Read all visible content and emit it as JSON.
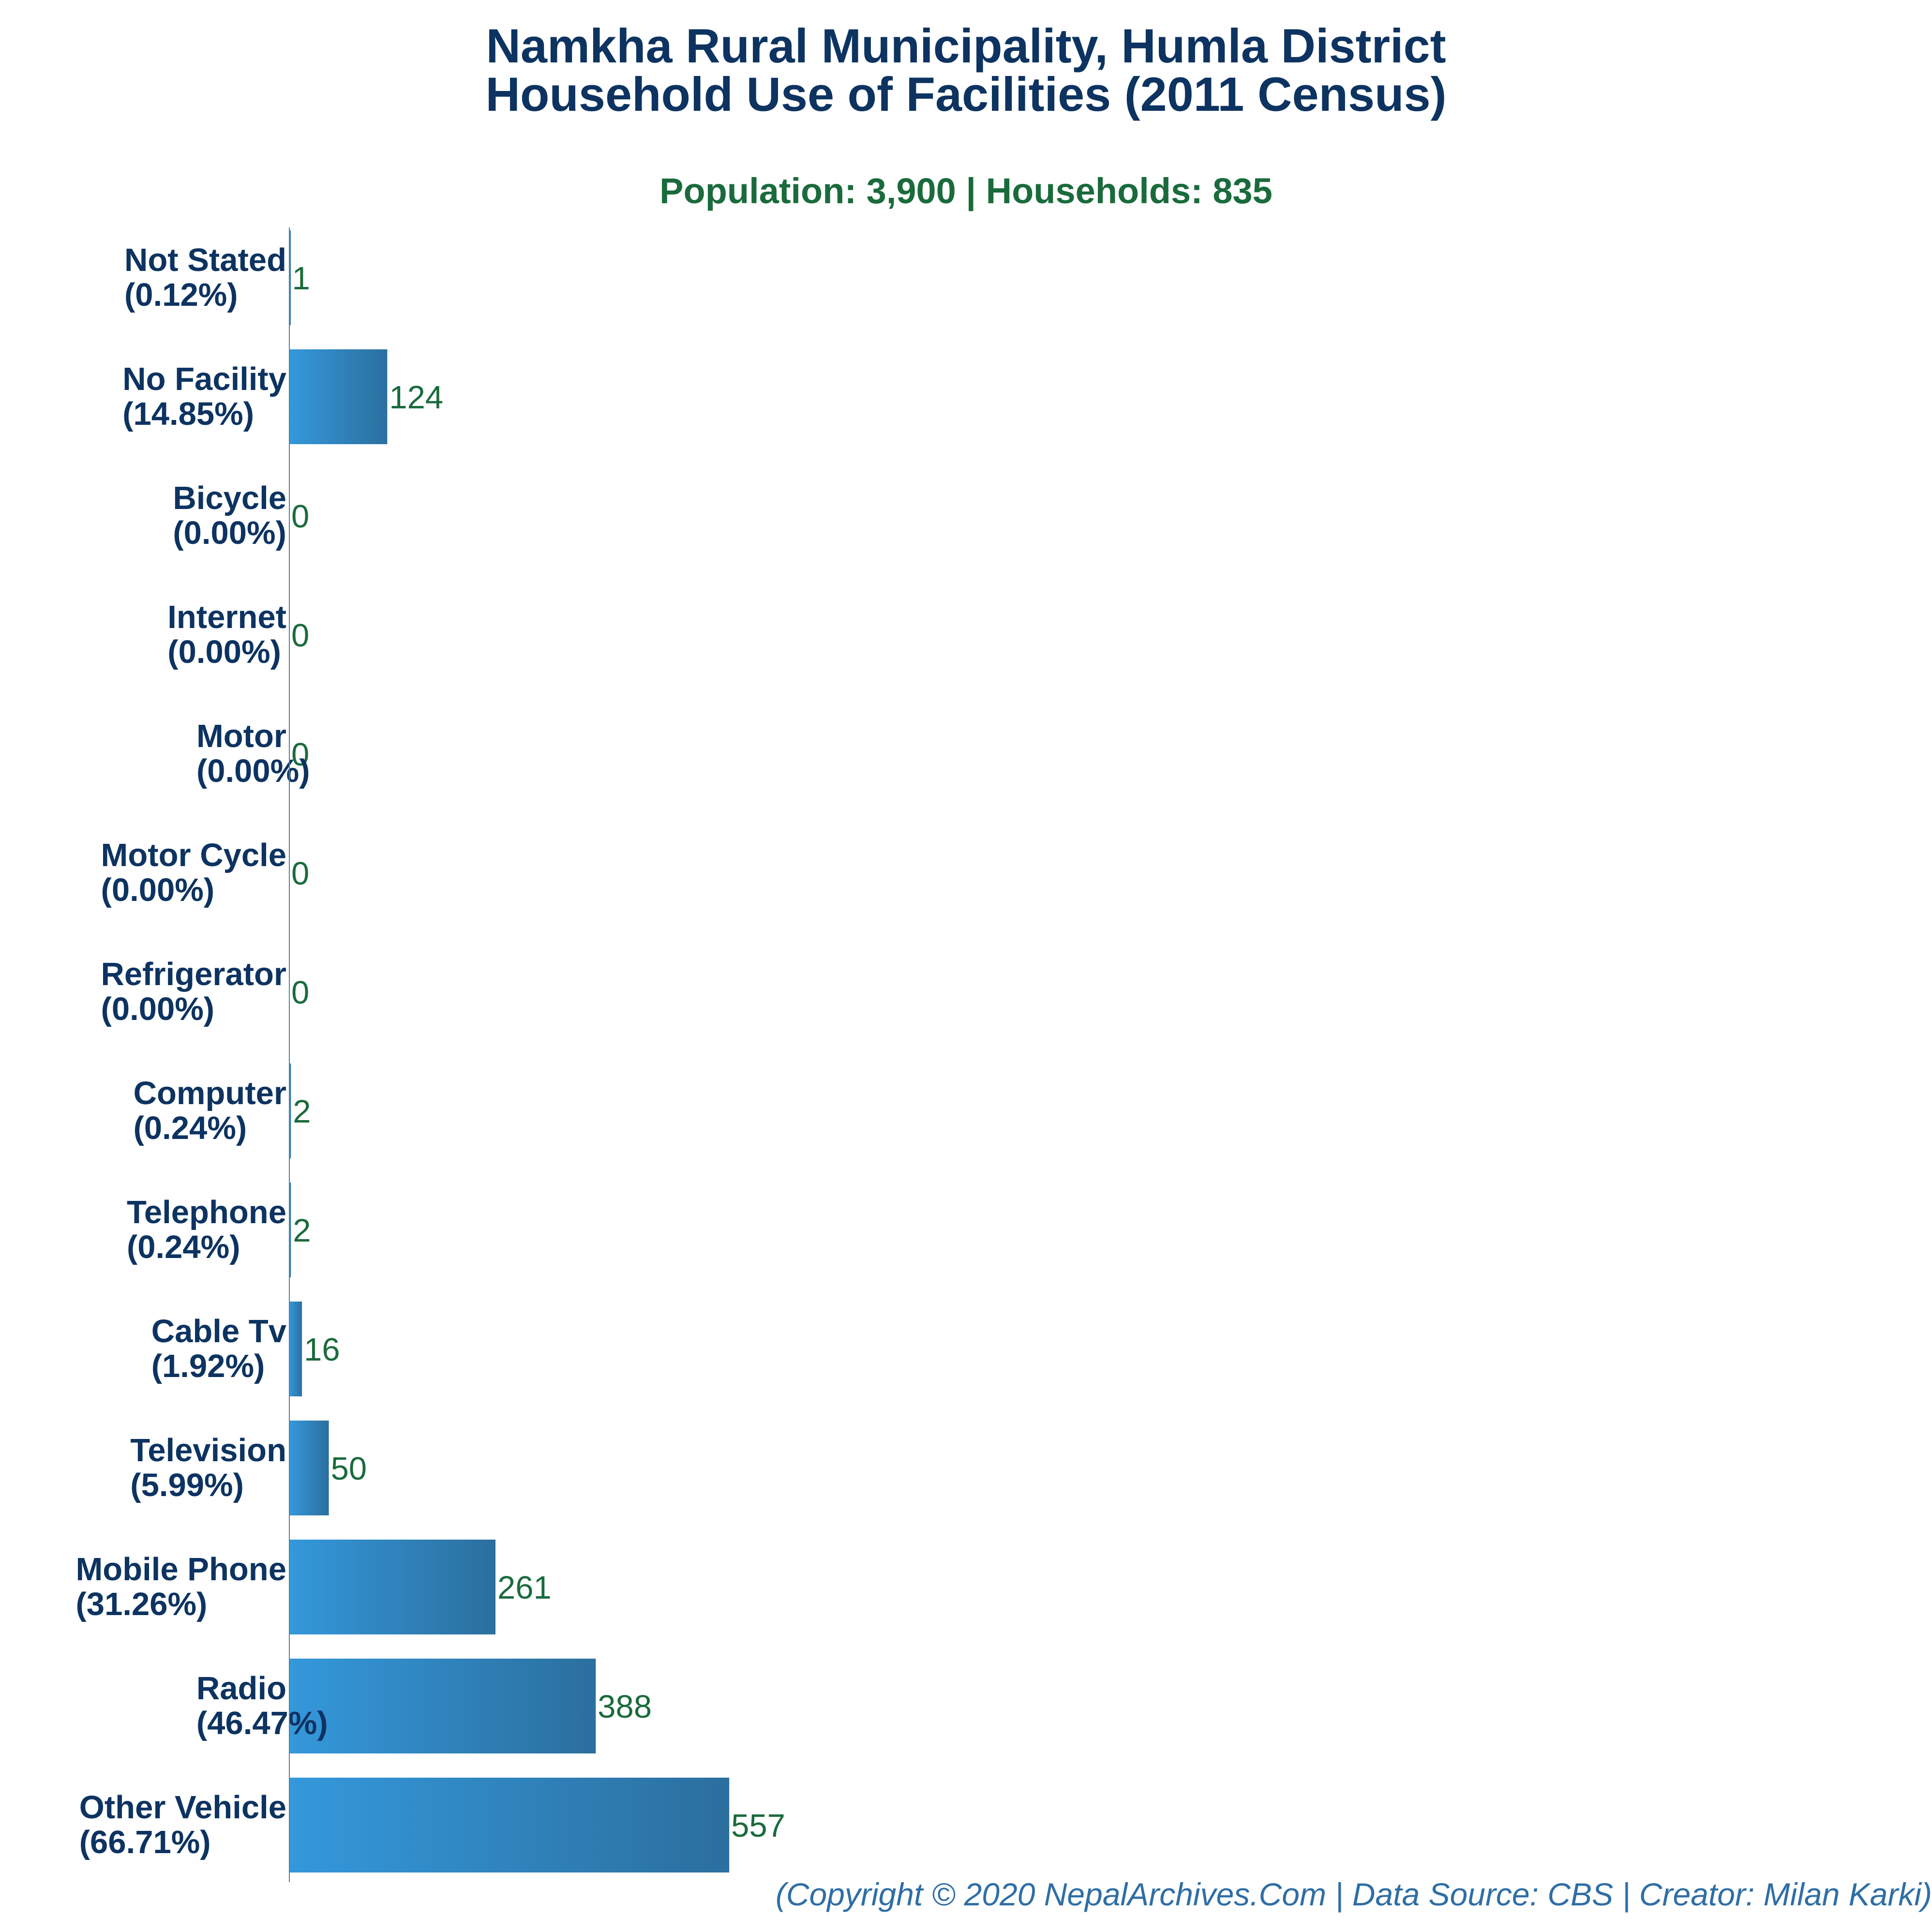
{
  "title_line_1": "Namkha Rural Municipality, Humla District",
  "title_line_2": "Household Use of Facilities (2011 Census)",
  "subtitle": "Population: 3,900 | Households: 835",
  "footer": "(Copyright © 2020 NepalArchives.Com | Data Source: CBS | Creator: Milan Karki)",
  "colors": {
    "title": "#0d3361",
    "subtitle": "#1a6b3c",
    "category_label": "#0d3361",
    "value_label": "#1a6b3c",
    "footer": "#2f6ea5",
    "bar_start": "#3498db",
    "bar_end": "#2b6f9e",
    "axis": "#5a7f9a"
  },
  "chart_data": {
    "type": "bar",
    "orientation": "horizontal",
    "categories": [
      "Not Stated",
      "No Facility",
      "Bicycle",
      "Internet",
      "Motor",
      "Motor Cycle",
      "Refrigerator",
      "Computer",
      "Telephone",
      "Cable Tv",
      "Television",
      "Mobile Phone",
      "Radio",
      "Other Vehicle"
    ],
    "percent_labels": [
      "(0.12%)",
      "(14.85%)",
      "(0.00%)",
      "(0.00%)",
      "(0.00%)",
      "(0.00%)",
      "(0.00%)",
      "(0.24%)",
      "(0.24%)",
      "(1.92%)",
      "(5.99%)",
      "(31.26%)",
      "(46.47%)",
      "(66.71%)"
    ],
    "values": [
      1,
      124,
      0,
      0,
      0,
      0,
      0,
      2,
      2,
      16,
      50,
      261,
      388,
      557
    ],
    "xlim": [
      0,
      2080
    ],
    "grid": false,
    "legend": false
  }
}
